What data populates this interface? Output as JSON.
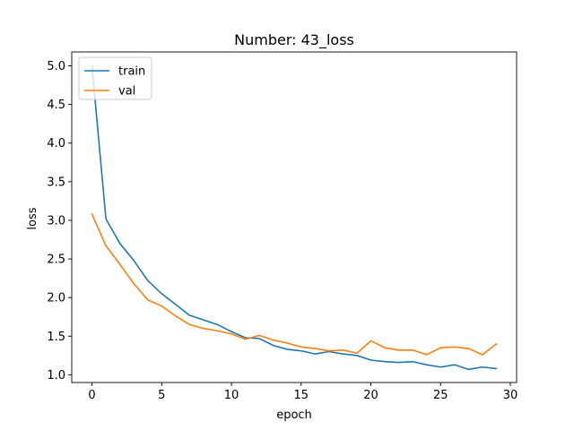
{
  "chart_data": {
    "type": "line",
    "title": "Number: 43_loss",
    "xlabel": "epoch",
    "ylabel": "loss",
    "xlim": [
      -1.45,
      30.45
    ],
    "ylim": [
      0.9,
      5.18
    ],
    "xticks": [
      0,
      5,
      10,
      15,
      20,
      25,
      30
    ],
    "yticks": [
      1.0,
      1.5,
      2.0,
      2.5,
      3.0,
      3.5,
      4.0,
      4.5,
      5.0
    ],
    "grid": false,
    "legend_position": "upper-left",
    "x": [
      0,
      1,
      2,
      3,
      4,
      5,
      6,
      7,
      8,
      9,
      10,
      11,
      12,
      13,
      14,
      15,
      16,
      17,
      18,
      19,
      20,
      21,
      22,
      23,
      24,
      25,
      26,
      27,
      28,
      29
    ],
    "series": [
      {
        "name": "train",
        "color": "#1f77b4",
        "values": [
          5.0,
          3.02,
          2.7,
          2.48,
          2.22,
          2.05,
          1.91,
          1.77,
          1.71,
          1.65,
          1.56,
          1.48,
          1.47,
          1.38,
          1.33,
          1.31,
          1.27,
          1.3,
          1.27,
          1.25,
          1.19,
          1.17,
          1.16,
          1.17,
          1.13,
          1.1,
          1.13,
          1.07,
          1.1,
          1.08
        ]
      },
      {
        "name": "val",
        "color": "#ff7f0e",
        "values": [
          3.08,
          2.67,
          2.43,
          2.18,
          1.97,
          1.89,
          1.76,
          1.65,
          1.6,
          1.57,
          1.53,
          1.46,
          1.51,
          1.45,
          1.41,
          1.36,
          1.34,
          1.31,
          1.32,
          1.28,
          1.44,
          1.35,
          1.32,
          1.32,
          1.26,
          1.35,
          1.36,
          1.34,
          1.26,
          1.4
        ]
      }
    ]
  }
}
